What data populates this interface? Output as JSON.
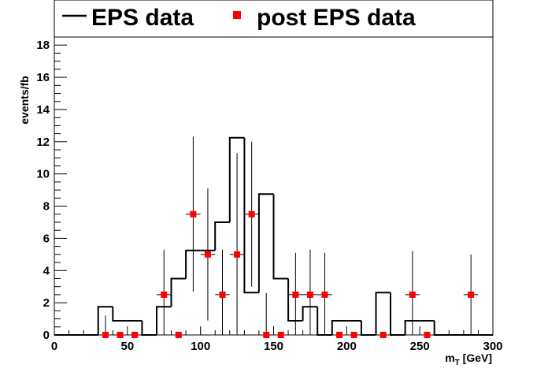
{
  "chart_data": {
    "type": "histogram",
    "title": "",
    "xlabel_main": "m",
    "xlabel_sub": "T",
    "xlabel_unit": " [GeV]",
    "ylabel": "events/fb",
    "xlim": [
      0,
      300
    ],
    "ylim": [
      0,
      18.5
    ],
    "xticks": [
      "0",
      "50",
      "100",
      "150",
      "200",
      "250",
      "300"
    ],
    "yticks": [
      "0",
      "2",
      "4",
      "6",
      "8",
      "10",
      "12",
      "14",
      "16",
      "18"
    ],
    "legend": {
      "placement": "top",
      "eps_label": "EPS data",
      "post_label": "post EPS data"
    },
    "colors": {
      "eps": "#000000",
      "post": "#ff0000",
      "error": "#000000"
    },
    "eps_series": {
      "name": "EPS data",
      "bin_width": 10,
      "x_start": 0,
      "values": [
        0,
        0,
        0,
        1.75,
        0.88,
        0.88,
        0,
        1.75,
        3.5,
        5.25,
        5.25,
        7.0,
        12.25,
        2.63,
        8.75,
        3.5,
        0.88,
        1.75,
        0,
        0.88,
        0.88,
        0,
        2.63,
        0,
        0.88,
        0.88,
        0,
        0,
        0,
        0
      ]
    },
    "post_series": {
      "name": "post EPS data",
      "points": [
        {
          "x": 35,
          "y": 0,
          "err": 1.2
        },
        {
          "x": 45,
          "y": 0,
          "err": 0
        },
        {
          "x": 55,
          "y": 0,
          "err": 0
        },
        {
          "x": 75,
          "y": 2.5,
          "err": 2.8
        },
        {
          "x": 85,
          "y": 0,
          "err": 0
        },
        {
          "x": 95,
          "y": 7.5,
          "err": 4.8
        },
        {
          "x": 105,
          "y": 5.0,
          "err": 4.1
        },
        {
          "x": 115,
          "y": 2.5,
          "err": 2.8
        },
        {
          "x": 125,
          "y": 5.0,
          "err": 6.3
        },
        {
          "x": 135,
          "y": 7.5,
          "err": 4.5
        },
        {
          "x": 145,
          "y": 0,
          "err": 2.6
        },
        {
          "x": 155,
          "y": 0,
          "err": 0
        },
        {
          "x": 165,
          "y": 2.5,
          "err": 2.6
        },
        {
          "x": 175,
          "y": 2.5,
          "err": 2.8
        },
        {
          "x": 185,
          "y": 2.5,
          "err": 2.6
        },
        {
          "x": 195,
          "y": 0,
          "err": 0
        },
        {
          "x": 205,
          "y": 0,
          "err": 0
        },
        {
          "x": 225,
          "y": 0,
          "err": 0
        },
        {
          "x": 245,
          "y": 2.5,
          "err": 2.7
        },
        {
          "x": 255,
          "y": 0,
          "err": 0
        },
        {
          "x": 285,
          "y": 2.5,
          "err": 2.5
        }
      ]
    }
  }
}
